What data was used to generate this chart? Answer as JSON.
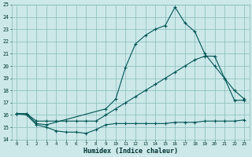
{
  "xlabel": "Humidex (Indice chaleur)",
  "bg_color": "#cce8e8",
  "grid_color": "#88bbbb",
  "line_color": "#005555",
  "xlim_min": -0.5,
  "xlim_max": 23.5,
  "ylim_min": 14,
  "ylim_max": 25,
  "xticks": [
    0,
    1,
    2,
    3,
    4,
    5,
    6,
    7,
    8,
    9,
    10,
    11,
    12,
    13,
    14,
    15,
    16,
    17,
    18,
    19,
    20,
    21,
    22,
    23
  ],
  "yticks": [
    14,
    15,
    16,
    17,
    18,
    19,
    20,
    21,
    22,
    23,
    24,
    25
  ],
  "line1_x": [
    0,
    1,
    2,
    3,
    4,
    5,
    6,
    7,
    8,
    9,
    10,
    11,
    12,
    13,
    14,
    15,
    16,
    17,
    18,
    19,
    20,
    21,
    22,
    23
  ],
  "line1_y": [
    16.1,
    16.0,
    15.2,
    15.0,
    14.7,
    14.6,
    14.6,
    14.5,
    14.8,
    15.2,
    15.3,
    15.3,
    15.3,
    15.3,
    15.3,
    15.3,
    15.4,
    15.4,
    15.4,
    15.5,
    15.5,
    15.5,
    15.5,
    15.6
  ],
  "line2_x": [
    0,
    1,
    2,
    3,
    4,
    5,
    6,
    7,
    8,
    9,
    10,
    11,
    12,
    13,
    14,
    15,
    16,
    17,
    18,
    19,
    20,
    21,
    22,
    23
  ],
  "line2_y": [
    16.1,
    16.1,
    15.5,
    15.5,
    15.5,
    15.5,
    15.5,
    15.5,
    15.5,
    16.0,
    16.5,
    17.0,
    17.5,
    18.0,
    18.5,
    19.0,
    19.5,
    20.0,
    20.5,
    20.8,
    20.8,
    19.0,
    18.0,
    17.3
  ],
  "line3_x": [
    0,
    1,
    2,
    3,
    9,
    10,
    11,
    12,
    13,
    14,
    15,
    16,
    17,
    18,
    19,
    20,
    21,
    22,
    23
  ],
  "line3_y": [
    16.1,
    16.1,
    15.3,
    15.2,
    16.5,
    17.3,
    19.9,
    21.8,
    22.5,
    23.0,
    23.3,
    24.8,
    23.5,
    22.8,
    21.0,
    20.0,
    19.0,
    17.2,
    17.2
  ]
}
